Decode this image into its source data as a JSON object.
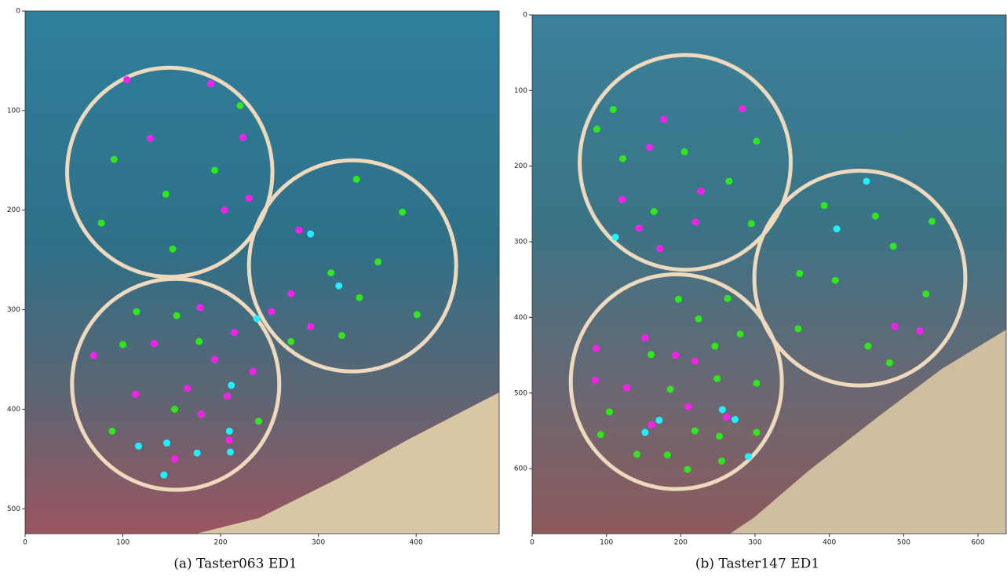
{
  "chart_data": [
    {
      "type": "scatter",
      "title": "(a) Taster063 ED1",
      "xlim": [
        0,
        485
      ],
      "ylim": [
        525,
        0
      ],
      "xticks": [
        0,
        100,
        200,
        300,
        400
      ],
      "yticks": [
        0,
        100,
        200,
        300,
        400,
        500
      ],
      "circle_color": "#efd9bd",
      "circles": [
        {
          "x": 148,
          "y": 162,
          "r": 105
        },
        {
          "x": 335,
          "y": 256,
          "r": 106
        },
        {
          "x": 154,
          "y": 375,
          "r": 106
        }
      ],
      "series": [
        {
          "color": "#ff1ef0",
          "x": [
            104,
            190,
            128,
            223,
            229,
            204,
            280,
            272,
            292,
            252,
            179,
            132,
            214,
            70,
            194,
            233,
            113,
            166,
            207,
            180,
            209,
            153
          ],
          "y": [
            69,
            73,
            128,
            127,
            188,
            200,
            220,
            284,
            317,
            302,
            298,
            334,
            323,
            346,
            350,
            362,
            385,
            379,
            387,
            405,
            431,
            450
          ]
        },
        {
          "color": "#2ee81a",
          "x": [
            220,
            91,
            194,
            144,
            78,
            151,
            339,
            386,
            313,
            361,
            342,
            401,
            324,
            272,
            114,
            155,
            178,
            100,
            153,
            89,
            239
          ],
          "y": [
            95,
            149,
            160,
            184,
            213,
            239,
            169,
            202,
            263,
            252,
            288,
            305,
            326,
            332,
            302,
            306,
            332,
            335,
            400,
            422,
            412
          ]
        },
        {
          "color": "#1ef0ff",
          "x": [
            292,
            321,
            237,
            211,
            209,
            210,
            116,
            145,
            176,
            142
          ],
          "y": [
            224,
            276,
            309,
            376,
            422,
            443,
            437,
            434,
            444,
            466
          ]
        }
      ]
    },
    {
      "type": "scatter",
      "title": "(b) Taster147 ED1",
      "xlim": [
        0,
        638
      ],
      "ylim": [
        686,
        0
      ],
      "xticks": [
        0,
        100,
        200,
        300,
        400,
        500,
        600
      ],
      "yticks": [
        0,
        100,
        200,
        300,
        400,
        500,
        600
      ],
      "circle_color": "#efd9bd",
      "circles": [
        {
          "x": 206,
          "y": 195,
          "r": 142
        },
        {
          "x": 441,
          "y": 348,
          "r": 142
        },
        {
          "x": 194,
          "y": 485,
          "r": 142
        }
      ],
      "series": [
        {
          "color": "#ff1ef0",
          "x": [
            177,
            283,
            158,
            227,
            121,
            144,
            220,
            172,
            86,
            152,
            85,
            127,
            193,
            219,
            210,
            262,
            161,
            488,
            522
          ],
          "y": [
            138,
            124,
            175,
            233,
            244,
            282,
            274,
            309,
            441,
            427,
            483,
            493,
            450,
            458,
            518,
            532,
            542,
            412,
            418
          ]
        },
        {
          "color": "#2ee81a",
          "x": [
            109,
            87,
            302,
            205,
            122,
            265,
            164,
            295,
            393,
            462,
            538,
            486,
            360,
            408,
            530,
            358,
            452,
            481,
            197,
            263,
            224,
            246,
            280,
            160,
            249,
            302,
            186,
            104,
            92,
            219,
            252,
            302,
            141,
            182,
            255,
            209
          ],
          "y": [
            125,
            151,
            167,
            181,
            190,
            220,
            260,
            276,
            252,
            266,
            273,
            306,
            342,
            351,
            369,
            415,
            438,
            460,
            376,
            375,
            402,
            438,
            422,
            449,
            481,
            487,
            495,
            525,
            555,
            550,
            557,
            552,
            581,
            582,
            590,
            601
          ]
        },
        {
          "color": "#1ef0ff",
          "x": [
            450,
            410,
            112,
            256,
            273,
            171,
            152,
            291
          ],
          "y": [
            220,
            283,
            294,
            522,
            535,
            536,
            552,
            584
          ]
        }
      ]
    }
  ]
}
